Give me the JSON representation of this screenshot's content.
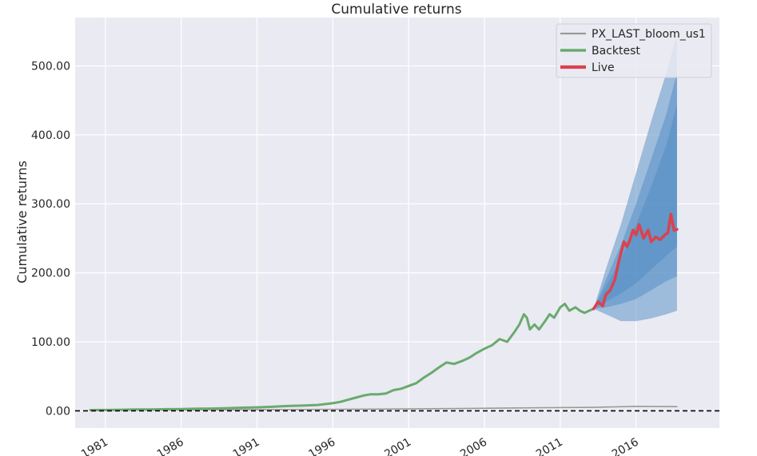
{
  "chart_data": {
    "type": "line",
    "title": "Cumulative returns",
    "xlabel": "",
    "ylabel": "Cumulative returns",
    "xlim": [
      1979.0,
      2021.5
    ],
    "ylim": [
      -25,
      570
    ],
    "x_ticks": [
      1981,
      1986,
      1991,
      1996,
      2001,
      2006,
      2011,
      2016
    ],
    "x_tick_labels": [
      "1981",
      "1986",
      "1991",
      "1996",
      "2001",
      "2006",
      "2011",
      "2016"
    ],
    "y_ticks": [
      0,
      100,
      200,
      300,
      400,
      500
    ],
    "y_tick_labels": [
      "0.00",
      "100.00",
      "200.00",
      "300.00",
      "400.00",
      "500.00"
    ],
    "grid": true,
    "background": "#eaeaf2",
    "legend_position": "top-right",
    "baseline": {
      "y": 0,
      "style": "dashed",
      "color": "#000000"
    },
    "series": [
      {
        "name": "PX_LAST_bloom_us1",
        "color": "#999999",
        "x": [
          1980.0,
          1985.0,
          1990.0,
          1995.0,
          2000.0,
          2005.0,
          2010.0,
          2013.2,
          2016.0,
          2018.7
        ],
        "y": [
          1.0,
          1.2,
          1.5,
          2.0,
          2.5,
          3.5,
          4.5,
          5.0,
          6.5,
          6.0
        ]
      },
      {
        "name": "Backtest",
        "color": "#6aaa6e",
        "x": [
          1980.0,
          1981.0,
          1982.0,
          1983.0,
          1984.0,
          1985.0,
          1986.0,
          1987.0,
          1988.0,
          1989.0,
          1990.0,
          1991.0,
          1992.0,
          1993.0,
          1994.0,
          1995.0,
          1996.0,
          1996.5,
          1997.0,
          1997.5,
          1998.0,
          1998.5,
          1999.0,
          1999.5,
          2000.0,
          2000.5,
          2001.0,
          2001.5,
          2002.0,
          2002.5,
          2003.0,
          2003.5,
          2004.0,
          2004.5,
          2005.0,
          2005.5,
          2006.0,
          2006.5,
          2007.0,
          2007.5,
          2008.0,
          2008.3,
          2008.6,
          2008.8,
          2009.0,
          2009.3,
          2009.6,
          2010.0,
          2010.3,
          2010.6,
          2011.0,
          2011.3,
          2011.6,
          2012.0,
          2012.3,
          2012.6,
          2013.0,
          2013.2
        ],
        "y": [
          1.0,
          1.2,
          1.5,
          1.8,
          2.0,
          2.3,
          2.6,
          3.0,
          3.3,
          3.8,
          4.5,
          5.0,
          5.8,
          7.0,
          7.5,
          8.5,
          11.0,
          13.0,
          16.0,
          19.0,
          22.0,
          24.0,
          24.0,
          25.0,
          30.0,
          32.0,
          36.0,
          40.0,
          48.0,
          55.0,
          63.0,
          70.0,
          68.0,
          72.0,
          77.0,
          84.0,
          90.0,
          95.0,
          104.0,
          100.0,
          115.0,
          125.0,
          140.0,
          135.0,
          118.0,
          125.0,
          118.0,
          130.0,
          140.0,
          135.0,
          150.0,
          155.0,
          145.0,
          150.0,
          145.0,
          142.0,
          146.0,
          148.0
        ]
      },
      {
        "name": "Live",
        "color": "#d9434f",
        "x": [
          2013.2,
          2013.5,
          2013.8,
          2014.0,
          2014.3,
          2014.6,
          2014.9,
          2015.2,
          2015.4,
          2015.6,
          2015.8,
          2016.0,
          2016.2,
          2016.5,
          2016.8,
          2017.0,
          2017.3,
          2017.6,
          2017.9,
          2018.1,
          2018.3,
          2018.5,
          2018.7
        ],
        "y": [
          148.0,
          158.0,
          152.0,
          168.0,
          175.0,
          190.0,
          220.0,
          245.0,
          238.0,
          248.0,
          262.0,
          255.0,
          270.0,
          250.0,
          262.0,
          245.0,
          252.0,
          248.0,
          255.0,
          258.0,
          285.0,
          262.0,
          263.0
        ]
      }
    ],
    "cone": {
      "start_x": 2013.2,
      "x": [
        2013.2,
        2014.0,
        2015.0,
        2016.0,
        2017.0,
        2018.0,
        2018.7
      ],
      "color": "#4f8bc4",
      "bands": [
        {
          "lower": [
            148.0,
            140.0,
            130.0,
            130.0,
            134.0,
            140.0,
            145.0
          ],
          "upper": [
            148.0,
            205.0,
            270.0,
            345.0,
            420.0,
            490.0,
            545.0
          ]
        },
        {
          "lower": [
            148.0,
            150.0,
            155.0,
            162.0,
            175.0,
            188.0,
            195.0
          ],
          "upper": [
            148.0,
            190.0,
            240.0,
            300.0,
            365.0,
            430.0,
            490.0
          ]
        },
        {
          "lower": [
            148.0,
            158.0,
            170.0,
            185.0,
            205.0,
            225.0,
            238.0
          ],
          "upper": [
            148.0,
            180.0,
            220.0,
            270.0,
            325.0,
            385.0,
            445.0
          ]
        }
      ]
    }
  }
}
